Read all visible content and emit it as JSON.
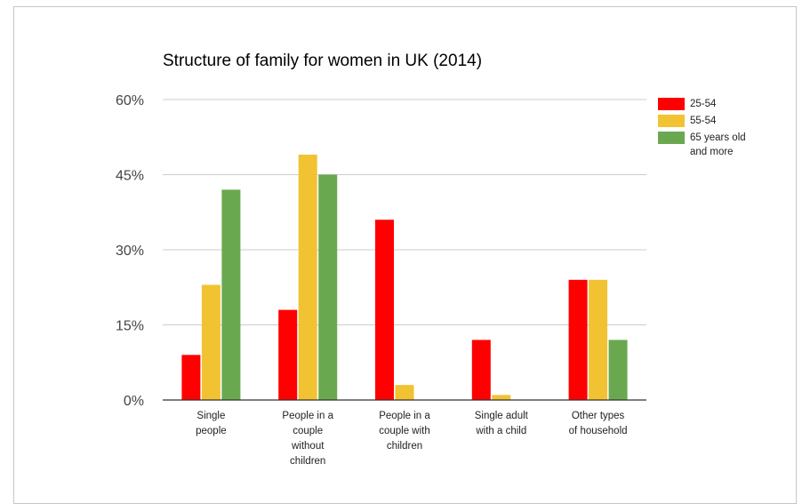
{
  "chart_data": {
    "type": "bar",
    "title": "Structure of family for women in UK (2014)",
    "categories": [
      "Single people",
      "People in a couple without children",
      "People in a couple with children",
      "Single adult with a child",
      "Other types of household"
    ],
    "category_lines": [
      [
        "Single",
        "people"
      ],
      [
        "People in a",
        "couple",
        "without",
        "children"
      ],
      [
        "People in a",
        "couple with",
        "children"
      ],
      [
        "Single adult",
        "with a child"
      ],
      [
        "Other types",
        "of household"
      ]
    ],
    "series": [
      {
        "name": "25-54",
        "color": "#ff0000",
        "values": [
          9,
          18,
          36,
          12,
          24
        ]
      },
      {
        "name": "55-54",
        "color": "#f1c232",
        "values": [
          23,
          49,
          3,
          1,
          24
        ]
      },
      {
        "name": "65 years old and more",
        "color": "#6aa84f",
        "values": [
          42,
          45,
          0,
          0,
          12
        ]
      }
    ],
    "legend_lines": [
      [
        "25-54"
      ],
      [
        "55-54"
      ],
      [
        "65 years old",
        "and more"
      ]
    ],
    "y_ticks": [
      "0%",
      "15%",
      "30%",
      "45%",
      "60%"
    ],
    "ylim": [
      0,
      60
    ],
    "xlabel": "",
    "ylabel": "",
    "grid": true,
    "legend_position": "right"
  }
}
